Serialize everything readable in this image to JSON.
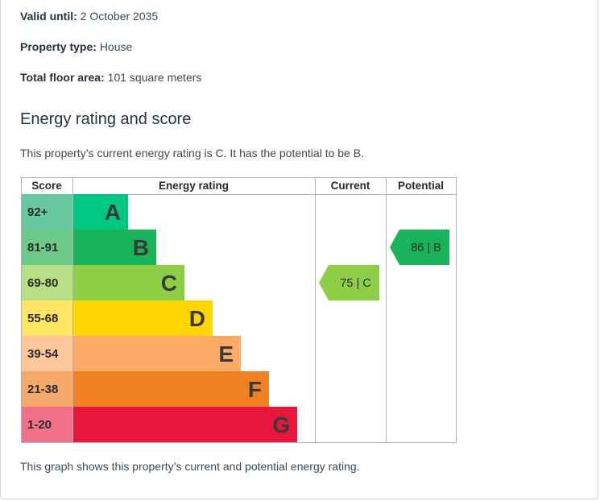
{
  "details": {
    "valid_until": {
      "label": "Valid until:",
      "value": "2 October 2035"
    },
    "property_type": {
      "label": "Property type:",
      "value": "House"
    },
    "floor_area": {
      "label": "Total floor area:",
      "value": "101 square meters"
    }
  },
  "section": {
    "heading": "Energy rating and score",
    "summary": "This property’s current energy rating is C. It has the potential to be B.",
    "footer": "This graph shows this property’s current and potential energy rating."
  },
  "chart_data": {
    "type": "table",
    "headers": {
      "score": "Score",
      "rating": "Energy rating",
      "current": "Current",
      "potential": "Potential"
    },
    "bands": [
      {
        "score": "92+",
        "letter": "A",
        "color": "#008054",
        "bar": "#00c781",
        "score_bg": "#67c9a0"
      },
      {
        "score": "81-91",
        "letter": "B",
        "color": "#19b459",
        "bar": "#19b459",
        "score_bg": "#6dcb8a"
      },
      {
        "score": "69-80",
        "letter": "C",
        "color": "#8dce46",
        "bar": "#8dce46",
        "score_bg": "#b7df87"
      },
      {
        "score": "55-68",
        "letter": "D",
        "color": "#ffd500",
        "bar": "#ffd500",
        "score_bg": "#ffe561"
      },
      {
        "score": "39-54",
        "letter": "E",
        "color": "#fcaa65",
        "bar": "#fcaa65",
        "score_bg": "#fdc79a"
      },
      {
        "score": "21-38",
        "letter": "F",
        "color": "#ef8023",
        "bar": "#ef8023",
        "score_bg": "#f4a86a"
      },
      {
        "score": "1-20",
        "letter": "G",
        "color": "#e9153b",
        "bar": "#e9153b",
        "score_bg": "#f07088"
      }
    ],
    "current": {
      "score": 75,
      "band": "C",
      "label": "75 | C",
      "color": "#8dce46"
    },
    "potential": {
      "score": 86,
      "band": "B",
      "label": "86 | B",
      "color": "#19b459"
    }
  }
}
